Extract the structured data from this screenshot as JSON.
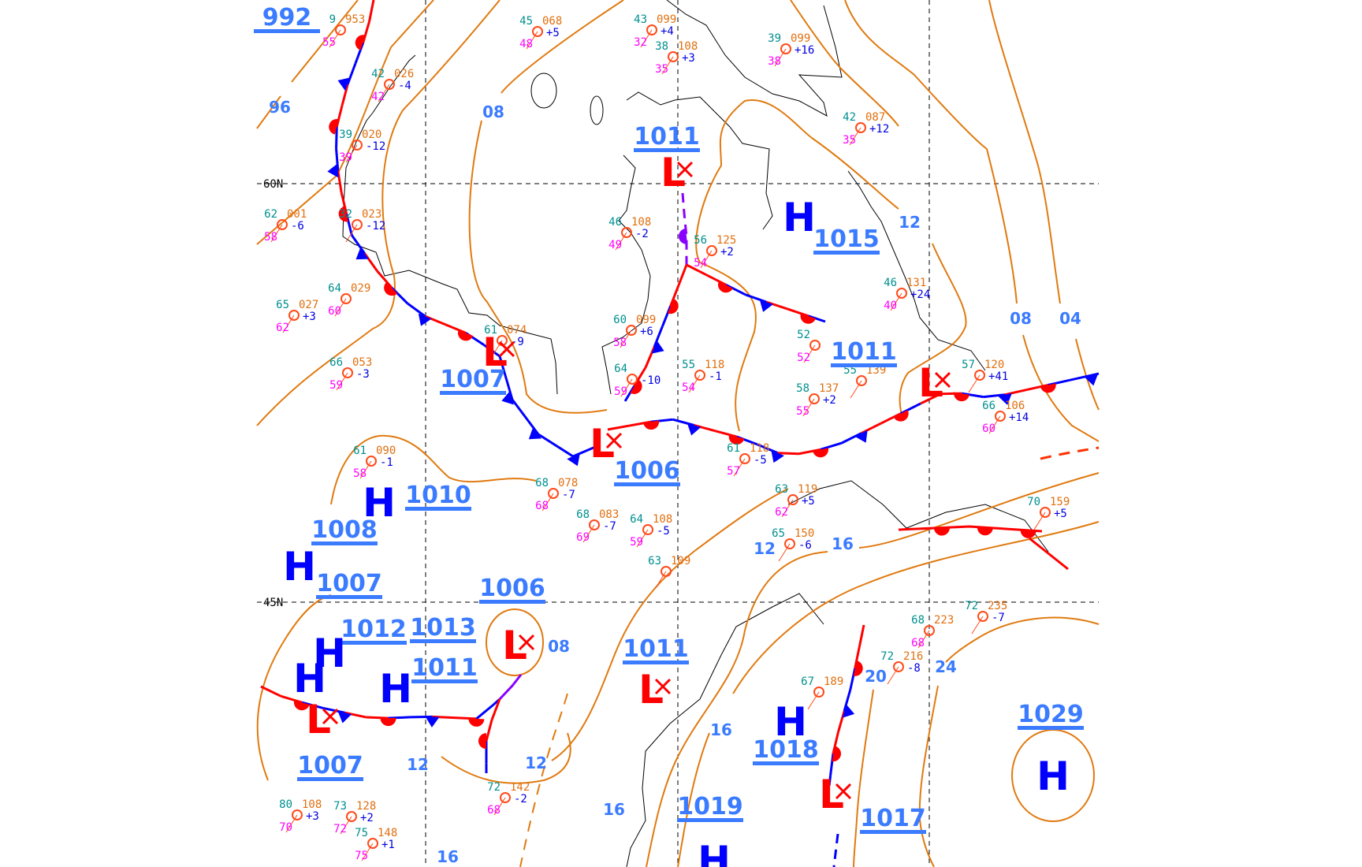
{
  "map": {
    "latitude_labels": [
      "60N",
      "45N"
    ],
    "colors": {
      "isobar": "#e07a10",
      "isobar_label": "#3b7bff",
      "high": "#0000ff",
      "low": "#ff0000",
      "cold_front": "#0000ff",
      "warm_front": "#ff0000",
      "occluded_front": "#8a00ff",
      "coastline": "#000000",
      "station_temp": "#008f8f",
      "station_pressure": "#e07010",
      "station_tendency": "#0000e0",
      "station_dewpoint": "#ff00ff",
      "station_circle": "#ff4a1a"
    },
    "pressure_labels": [
      "992",
      "1011",
      "1015",
      "1011",
      "1007",
      "1006",
      "1010",
      "1008",
      "1007",
      "1006",
      "1012",
      "1013",
      "1011",
      "1011",
      "1018",
      "1007",
      "1019",
      "1017",
      "1029"
    ],
    "pressure_centers": [
      "L",
      "H",
      "L",
      "L",
      "H",
      "H",
      "H",
      "L",
      "H",
      "H",
      "L",
      "L",
      "H",
      "L",
      "L",
      "H",
      "H"
    ],
    "isobar_labels": [
      "96",
      "08",
      "12",
      "08",
      "04",
      "12",
      "16",
      "20",
      "24",
      "16",
      "12",
      "12",
      "16",
      "16",
      "08"
    ],
    "fronts": [
      {
        "type": "stationary"
      },
      {
        "type": "cold"
      },
      {
        "type": "stationary"
      },
      {
        "type": "stationary"
      },
      {
        "type": "occluded"
      },
      {
        "type": "stationary"
      },
      {
        "type": "stationary"
      },
      {
        "type": "stationary"
      },
      {
        "type": "occluded"
      },
      {
        "type": "stationary"
      },
      {
        "type": "stationary"
      },
      {
        "type": "cold"
      },
      {
        "type": "warm"
      },
      {
        "type": "trough"
      }
    ],
    "stations": [
      {
        "t": "9",
        "p": "953",
        "tend": "",
        "d": "55"
      },
      {
        "t": "45",
        "p": "068",
        "tend": "+5",
        "d": "48"
      },
      {
        "t": "43",
        "p": "099",
        "tend": "+4",
        "d": "32"
      },
      {
        "t": "38",
        "p": "108",
        "tend": "+3",
        "d": "35"
      },
      {
        "t": "42",
        "p": "026",
        "tend": "-4",
        "d": "42"
      },
      {
        "t": "39",
        "p": "020",
        "tend": "-12",
        "d": "39"
      },
      {
        "t": "62",
        "p": "001",
        "tend": "-6",
        "d": "58"
      },
      {
        "t": "32",
        "p": "023",
        "tend": "-12",
        "d": ""
      },
      {
        "t": "64",
        "p": "029",
        "tend": "",
        "d": "60"
      },
      {
        "t": "65",
        "p": "027",
        "tend": "+3",
        "d": "62"
      },
      {
        "t": "66",
        "p": "053",
        "tend": "-3",
        "d": "59"
      },
      {
        "t": "61",
        "p": "074",
        "tend": "-9",
        "d": ""
      },
      {
        "t": "60",
        "p": "099",
        "tend": "+6",
        "d": "58"
      },
      {
        "t": "46",
        "p": "108",
        "tend": "-2",
        "d": "49"
      },
      {
        "t": "55",
        "p": "118",
        "tend": "-1",
        "d": "54"
      },
      {
        "t": "64",
        "p": "",
        "tend": "-10",
        "d": "59"
      },
      {
        "t": "39",
        "p": "099",
        "tend": "+16",
        "d": "38"
      },
      {
        "t": "42",
        "p": "087",
        "tend": "+12",
        "d": "35"
      },
      {
        "t": "56",
        "p": "125",
        "tend": "+2",
        "d": "54"
      },
      {
        "t": "46",
        "p": "131",
        "tend": "+24",
        "d": "40"
      },
      {
        "t": "52",
        "p": "",
        "tend": "",
        "d": "52"
      },
      {
        "t": "55",
        "p": "139",
        "tend": "",
        "d": ""
      },
      {
        "t": "58",
        "p": "137",
        "tend": "+2",
        "d": "55"
      },
      {
        "t": "57",
        "p": "120",
        "tend": "+41",
        "d": ""
      },
      {
        "t": "66",
        "p": "106",
        "tend": "+14",
        "d": "60"
      },
      {
        "t": "61",
        "p": "118",
        "tend": "-5",
        "d": "57"
      },
      {
        "t": "63",
        "p": "119",
        "tend": "+5",
        "d": "62"
      },
      {
        "t": "65",
        "p": "150",
        "tend": "-6",
        "d": ""
      },
      {
        "t": "72",
        "p": "235",
        "tend": "-7",
        "d": ""
      },
      {
        "t": "68",
        "p": "223",
        "tend": "",
        "d": "68"
      },
      {
        "t": "72",
        "p": "216",
        "tend": "-8",
        "d": ""
      },
      {
        "t": "67",
        "p": "189",
        "tend": "",
        "d": ""
      },
      {
        "t": "70",
        "p": "159",
        "tend": "+5",
        "d": ""
      },
      {
        "t": "61",
        "p": "090",
        "tend": "-1",
        "d": "58"
      },
      {
        "t": "68",
        "p": "078",
        "tend": "-7",
        "d": "68"
      },
      {
        "t": "68",
        "p": "083",
        "tend": "-7",
        "d": "69"
      },
      {
        "t": "64",
        "p": "108",
        "tend": "-5",
        "d": "59"
      },
      {
        "t": "63",
        "p": "109",
        "tend": "",
        "d": ""
      },
      {
        "t": "80",
        "p": "108",
        "tend": "+3",
        "d": "70"
      },
      {
        "t": "73",
        "p": "128",
        "tend": "+2",
        "d": "72"
      },
      {
        "t": "75",
        "p": "148",
        "tend": "+1",
        "d": "75"
      },
      {
        "t": "72",
        "p": "142",
        "tend": "-2",
        "d": "68"
      }
    ]
  }
}
